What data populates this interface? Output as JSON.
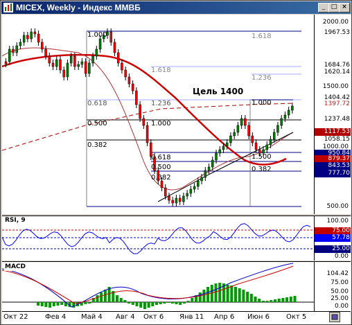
{
  "window": {
    "title": "MICEX, Weekly - Индекс ММВБ"
  },
  "price_scale": {
    "ticks": [
      "2000.00",
      "1500.00",
      "1000.00",
      "500.00"
    ],
    "tags": [
      {
        "text": "1967.53",
        "bg": "#ffffff",
        "fg": "#000000"
      },
      {
        "text": "1684.76",
        "bg": "#ffffff",
        "fg": "#000000"
      },
      {
        "text": "1620.14",
        "bg": "#ffffff",
        "fg": "#000000"
      },
      {
        "text": "1404.42",
        "bg": "#ffffff",
        "fg": "#000000"
      },
      {
        "text": "1397.72",
        "bg": "#ffffff",
        "fg": "#b22222"
      },
      {
        "text": "1237.48",
        "bg": "#ffffff",
        "fg": "#000000"
      },
      {
        "text": "1117.53",
        "bg": "#b00000",
        "fg": "#ffffff"
      },
      {
        "text": "1058.15",
        "bg": "#ffffff",
        "fg": "#000000"
      },
      {
        "text": "950.84",
        "bg": "#000080",
        "fg": "#ffffff"
      },
      {
        "text": "879.37",
        "bg": "#c00000",
        "fg": "#ffffff"
      },
      {
        "text": "843.53",
        "bg": "#000080",
        "fg": "#ffffff"
      },
      {
        "text": "777.70",
        "bg": "#000080",
        "fg": "#ffffff"
      }
    ]
  },
  "fib_levels_left": [
    {
      "text": "0.618"
    },
    {
      "text": "1.236"
    },
    {
      "text": "0.500"
    },
    {
      "text": "1.000"
    },
    {
      "text": "0.382"
    },
    {
      "text": "0.618"
    },
    {
      "text": "0.500"
    },
    {
      "text": "0.382"
    }
  ],
  "fib_levels_top": [
    {
      "text": "1.000"
    },
    {
      "text": "1.618"
    },
    {
      "text": "1.618"
    },
    {
      "text": "1.236"
    }
  ],
  "fib_levels_right": [
    {
      "text": "1.000"
    },
    {
      "text": "1.500"
    },
    {
      "text": "0.382"
    }
  ],
  "target_label": "Цель 1400",
  "rsi": {
    "name": "RSI, 9",
    "ticks": [
      "100.00",
      "75.00",
      "57.78",
      "25.00",
      "0.00"
    ],
    "current": "57.78"
  },
  "macd": {
    "name": "MACD",
    "ticks": [
      "104.42",
      "75.00",
      "50.00",
      "25.00",
      "0.00"
    ]
  },
  "x_axis": [
    "Окт 22",
    "Фев 4",
    "Май 4",
    "Авг 4",
    "Окт 6",
    "Янв 11",
    "Апр 6",
    "Июн 6",
    "Окт 5"
  ],
  "colors": {
    "titlebar_start": "#0a246a",
    "titlebar_end": "#3a6ea5",
    "candle_up": "#008000",
    "candle_down": "#ff0000",
    "ma_fast": "#cc0000",
    "fib_line": "#000080",
    "rsi_line": "#0000ff",
    "macd_hist": "#009900"
  },
  "chart_data": {
    "type": "candlestick",
    "title": "MICEX, Weekly - Индекс ММВБ",
    "y_scale_ticks": [
      500,
      1000,
      1500,
      2000
    ],
    "ylim": [
      500,
      2000
    ],
    "annotation": "Цель 1400",
    "swing_points": [
      {
        "label": "high",
        "value": 1967.53
      },
      {
        "label": "low",
        "value": 500
      },
      {
        "label": "target",
        "value": 1400
      }
    ],
    "last_close": 1237.48
  }
}
